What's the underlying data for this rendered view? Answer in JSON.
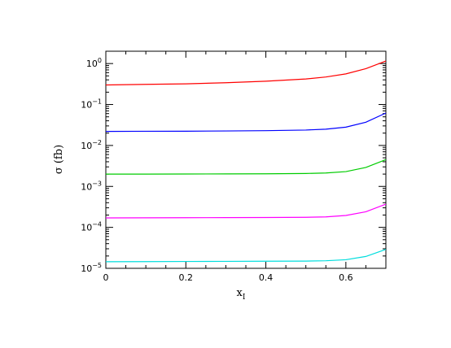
{
  "chart_data": {
    "type": "line",
    "title": "",
    "xlabel": "x",
    "xlabel_sub": "I",
    "ylabel": "σ  (fb)",
    "xlim": [
      0,
      0.7
    ],
    "ylim": [
      1e-05,
      2
    ],
    "y_scale": "log",
    "x_ticks": [
      {
        "value": 0,
        "label": "0"
      },
      {
        "value": 0.2,
        "label": "0.2"
      },
      {
        "value": 0.4,
        "label": "0.4"
      },
      {
        "value": 0.6,
        "label": "0.6"
      }
    ],
    "y_ticks": [
      {
        "value": 1,
        "base": "10",
        "exp": "0"
      },
      {
        "value": 0.1,
        "base": "10",
        "exp": "−1"
      },
      {
        "value": 0.01,
        "base": "10",
        "exp": "−2"
      },
      {
        "value": 0.001,
        "base": "10",
        "exp": "−3"
      },
      {
        "value": 0.0001,
        "base": "10",
        "exp": "−4"
      },
      {
        "value": 1e-05,
        "base": "10",
        "exp": "−5"
      }
    ],
    "grid": false,
    "legend": "none",
    "series": [
      {
        "color": "#ff0000",
        "x": [
          0,
          0.1,
          0.2,
          0.3,
          0.4,
          0.5,
          0.55,
          0.6,
          0.65,
          0.7
        ],
        "y": [
          0.3,
          0.31,
          0.32,
          0.34,
          0.37,
          0.42,
          0.47,
          0.56,
          0.75,
          1.15
        ]
      },
      {
        "color": "#0000ff",
        "x": [
          0,
          0.1,
          0.2,
          0.3,
          0.4,
          0.5,
          0.55,
          0.6,
          0.65,
          0.7
        ],
        "y": [
          0.022,
          0.0222,
          0.0223,
          0.0226,
          0.023,
          0.0238,
          0.025,
          0.028,
          0.037,
          0.062
        ]
      },
      {
        "color": "#00cc00",
        "x": [
          0,
          0.1,
          0.2,
          0.3,
          0.4,
          0.5,
          0.55,
          0.6,
          0.65,
          0.7
        ],
        "y": [
          0.002,
          0.002,
          0.00201,
          0.00202,
          0.00203,
          0.00207,
          0.00213,
          0.0023,
          0.0029,
          0.0045
        ]
      },
      {
        "color": "#ff00ff",
        "x": [
          0,
          0.1,
          0.2,
          0.3,
          0.4,
          0.5,
          0.55,
          0.6,
          0.65,
          0.7
        ],
        "y": [
          0.00017,
          0.000171,
          0.000172,
          0.000173,
          0.000174,
          0.000176,
          0.00018,
          0.000195,
          0.00024,
          0.00037
        ]
      },
      {
        "color": "#00dddd",
        "x": [
          0,
          0.1,
          0.2,
          0.3,
          0.4,
          0.5,
          0.55,
          0.6,
          0.65,
          0.7
        ],
        "y": [
          1.45e-05,
          1.46e-05,
          1.47e-05,
          1.48e-05,
          1.49e-05,
          1.5e-05,
          1.53e-05,
          1.62e-05,
          1.95e-05,
          2.9e-05
        ]
      }
    ]
  }
}
